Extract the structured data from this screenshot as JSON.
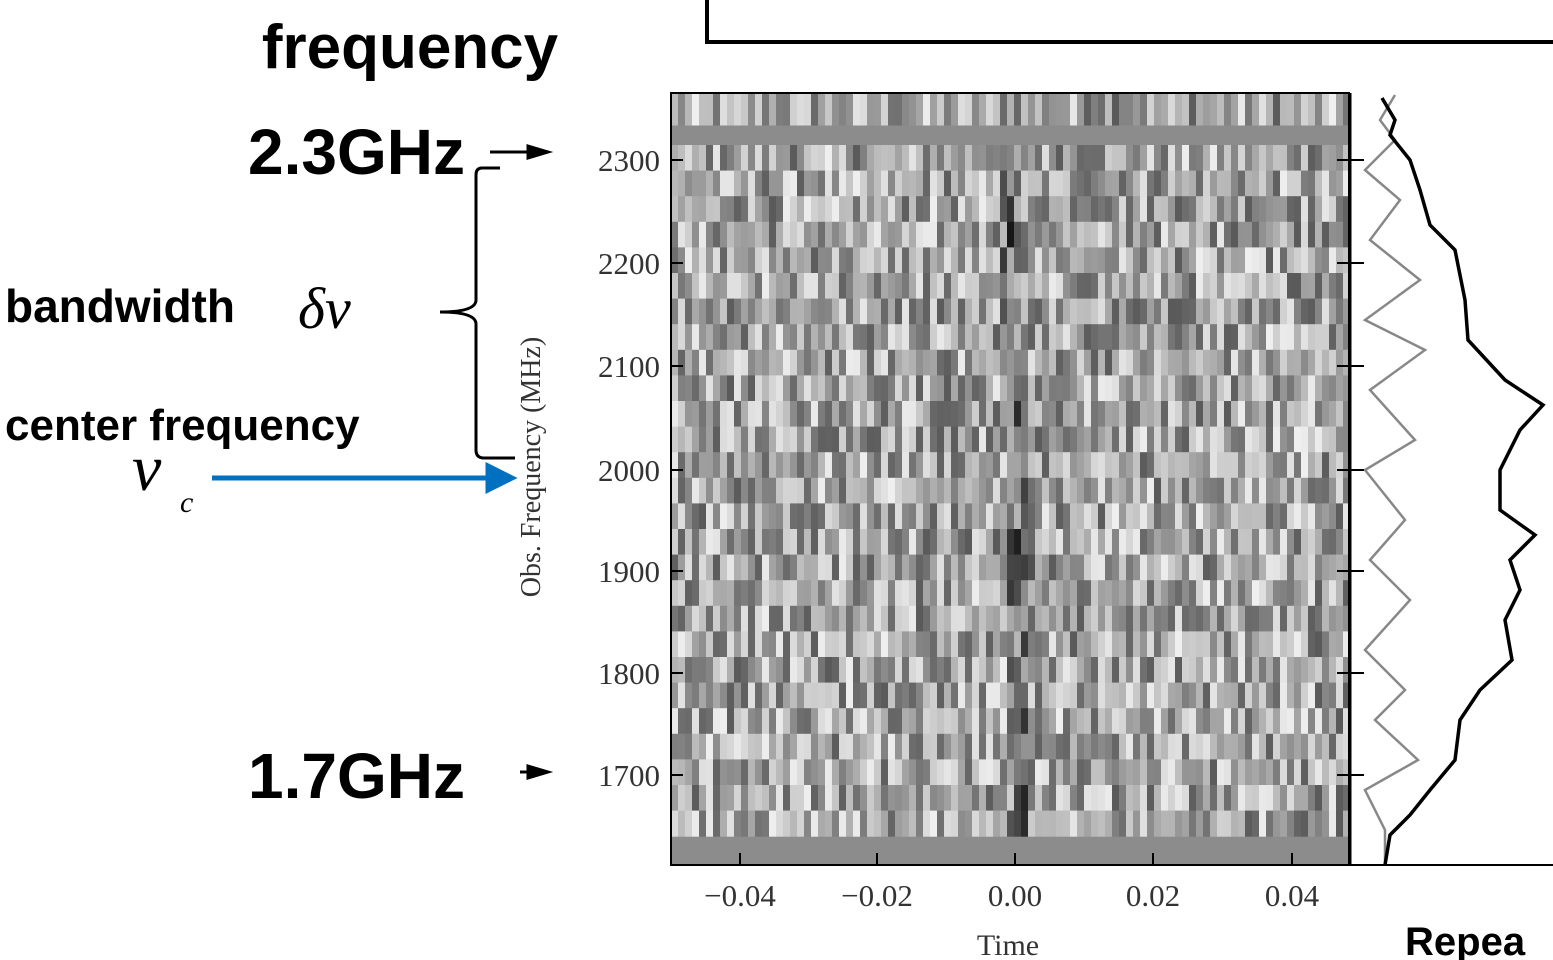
{
  "labels": {
    "frequency": "frequency",
    "top_freq": "2.3GHz",
    "bottom_freq": "1.7GHz",
    "bandwidth": "bandwidth",
    "bandwidth_symbol": "δν",
    "center": "center frequency",
    "center_symbol": "ν",
    "center_sub": "c",
    "repeat": "Repea"
  },
  "plot": {
    "y_label": "Obs. Frequency (MHz)",
    "y_ticks": [
      "2300",
      "2200",
      "2100",
      "2000",
      "1900",
      "1800",
      "1700"
    ],
    "x_label": "Time",
    "x_ticks": [
      "−0.04",
      "−0.02",
      "0.00",
      "0.02",
      "0.04"
    ]
  }
}
